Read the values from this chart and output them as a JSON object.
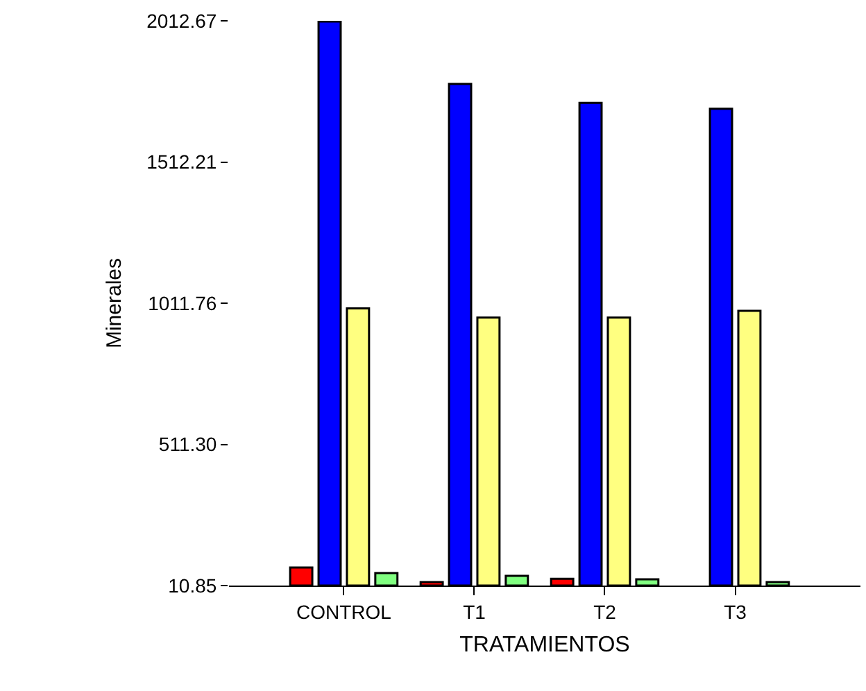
{
  "chart_data": {
    "type": "bar",
    "xlabel": "TRATAMIENTOS",
    "ylabel": "Minerales",
    "categories": [
      "CONTROL",
      "T1",
      "T2",
      "T3"
    ],
    "series": [
      {
        "color": "#ff0000",
        "values": [
          75,
          23,
          35,
          null
        ]
      },
      {
        "color": "#0000ff",
        "values": [
          2010,
          1789,
          1722,
          1701
        ]
      },
      {
        "color": "#ffff80",
        "values": [
          993,
          961,
          961,
          985
        ]
      },
      {
        "color": "#80ff80",
        "values": [
          55,
          45,
          33,
          23
        ]
      }
    ],
    "ylim": [
      10.85,
      2012.67
    ],
    "yticks": [
      10.85,
      {
        "value": 511.3,
        "label": "511.30"
      },
      1011.76,
      1512.21,
      2012.67
    ]
  }
}
